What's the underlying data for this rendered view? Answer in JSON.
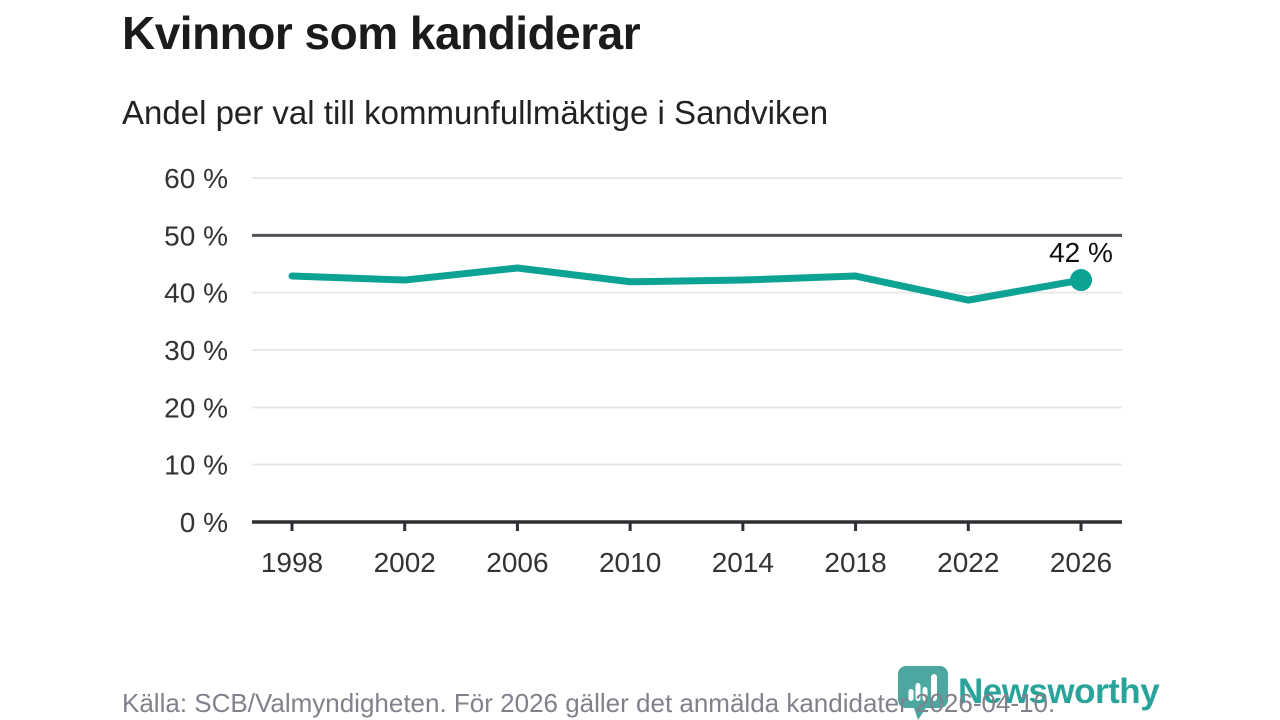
{
  "header": {
    "title": "Kvinnor som kandiderar",
    "subtitle": "Andel per val till kommunfullmäktige i Sandviken"
  },
  "chart_data": {
    "type": "line",
    "title": "Kvinnor som kandiderar",
    "subtitle": "Andel per val till kommunfullmäktige i Sandviken",
    "categories": [
      "1998",
      "2002",
      "2006",
      "2010",
      "2014",
      "2018",
      "2022",
      "2026"
    ],
    "values": [
      42.9,
      42.2,
      44.3,
      41.9,
      42.2,
      42.9,
      38.7,
      42.2
    ],
    "xlabel": "",
    "ylabel": "",
    "ylim": [
      0,
      60
    ],
    "ytick_step": 10,
    "ytick_suffix": " %",
    "grid": true,
    "reference_line": 50,
    "end_label": "42 %",
    "colors": {
      "line": "#0ca294",
      "grid_light": "#e9e9e9",
      "reference_line": "#53535a",
      "axis": "#2f2f33",
      "tick_text": "#333333",
      "end_label_text": "#111111"
    }
  },
  "footer": {
    "source": "Källa: SCB/Valmyndigheten. För 2026 gäller det anmälda kandidater 2026-04-10."
  },
  "logo": {
    "text": "Newsworthy",
    "text_color": "#2aa49b",
    "icon": "newsworthy-barchart-bubble-icon",
    "icon_color": "#4ba7a0",
    "icon_bar_color": "#ffffff"
  }
}
